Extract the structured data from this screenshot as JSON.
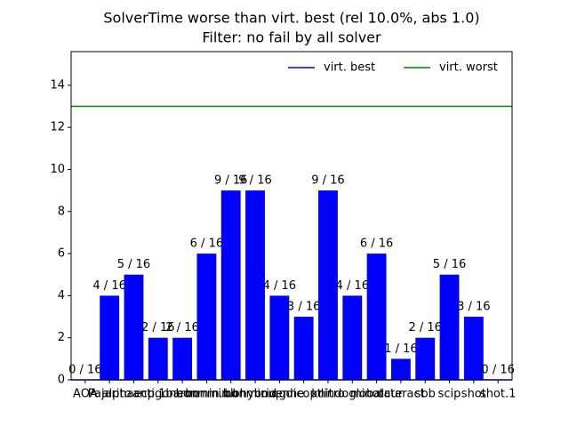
{
  "chart_data": {
    "type": "bar",
    "title": "SolverTime worse than virt. best (rel 10.0%, abs 1.0)",
    "subtitle": "Filter: no fail by all solver",
    "categories": [
      "AOA",
      "Pajarito",
      "alphaecp.1",
      "antigone",
      "baron",
      "bonmin.bb",
      "bonmin.bhybrid",
      "bonmin.qg",
      "couenne",
      "dicopt",
      "knitro",
      "lindoglobal",
      "minotaur",
      "octeract",
      "sbb",
      "scip",
      "shot",
      "shot.1"
    ],
    "values": [
      0,
      4,
      5,
      2,
      2,
      6,
      9,
      9,
      4,
      3,
      9,
      4,
      6,
      1,
      2,
      5,
      3,
      0
    ],
    "value_labels": [
      "0 / 16",
      "4 / 16",
      "5 / 16",
      "2 / 16",
      "2 / 16",
      "6 / 16",
      "9 / 16",
      "9 / 16",
      "4 / 16",
      "3 / 16",
      "9 / 16",
      "4 / 16",
      "6 / 16",
      "1 / 16",
      "2 / 16",
      "5 / 16",
      "3 / 16",
      "0 / 16"
    ],
    "color": "#0000ff",
    "reference_lines": [
      {
        "name": "virt. best",
        "color": "#0000ff",
        "value": 0
      },
      {
        "name": "virt. worst",
        "color": "#008000",
        "value": 13
      }
    ],
    "legend": "upper right",
    "ylim": [
      0,
      15.6
    ],
    "yticks": [
      0,
      2,
      4,
      6,
      8,
      10,
      12,
      14
    ]
  }
}
